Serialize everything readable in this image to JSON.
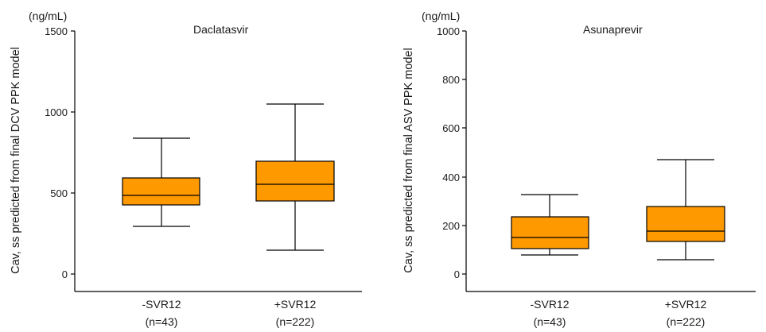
{
  "colors": {
    "box_fill": "#FF9900",
    "stroke": "#000000"
  },
  "chart_data": [
    {
      "type": "boxplot",
      "title": "Daclatasvir",
      "unit": "(ng/mL)",
      "ylabel": "Cav, ss predicted from final DCV PPK model",
      "ylim": [
        0,
        1500
      ],
      "yticks": [
        0,
        500,
        1000,
        1500
      ],
      "categories": [
        {
          "label": "-SVR12",
          "n": "(n=43)"
        },
        {
          "label": "+SVR12",
          "n": "(n=222)"
        }
      ],
      "boxes": [
        {
          "min": 300,
          "q1": 435,
          "median": 490,
          "q3": 600,
          "max": 850
        },
        {
          "min": 150,
          "q1": 455,
          "median": 555,
          "q3": 700,
          "max": 1050
        }
      ]
    },
    {
      "type": "boxplot",
      "title": "Asunaprevir",
      "unit": "(ng/mL)",
      "ylabel": "Cav, ss predicted from final ASV PPK model",
      "ylim": [
        0,
        1000
      ],
      "yticks": [
        0,
        200,
        400,
        600,
        800,
        1000
      ],
      "categories": [
        {
          "label": "-SVR12",
          "n": "(n=43)"
        },
        {
          "label": "+SVR12",
          "n": "(n=222)"
        }
      ],
      "boxes": [
        {
          "min": 75,
          "q1": 105,
          "median": 150,
          "q3": 235,
          "max": 325
        },
        {
          "min": 55,
          "q1": 135,
          "median": 175,
          "q3": 275,
          "max": 470
        }
      ]
    }
  ]
}
